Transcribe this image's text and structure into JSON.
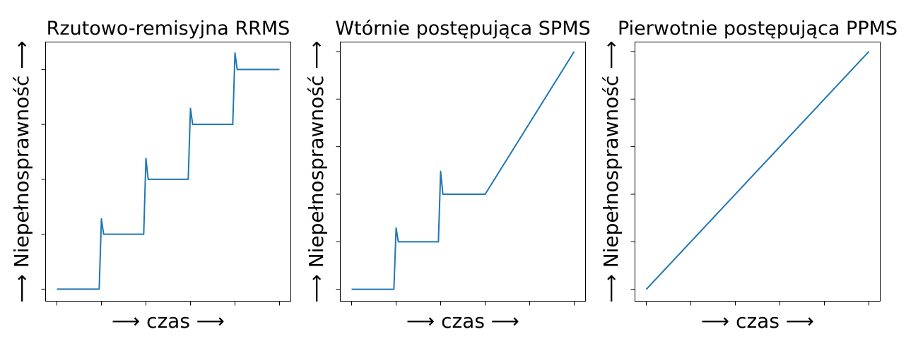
{
  "chart_data": [
    {
      "type": "line",
      "title": "Rzutowo-remisyjna RRMS",
      "xlabel": "⟶ czas ⟶",
      "ylabel": "⟶ Niepełnosprawność ⟶",
      "xlim": [
        0,
        5.25
      ],
      "ylim": [
        -0.22,
        4.5
      ],
      "xticks": [
        0,
        1,
        2,
        3,
        4,
        5
      ],
      "yticks": [
        0,
        1,
        2,
        3,
        4
      ],
      "grid": false,
      "series": [
        {
          "color": "#1f77b4",
          "x": [
            0,
            0.95,
            1.0,
            1.05,
            1.95,
            2.0,
            2.05,
            2.95,
            3.0,
            3.05,
            3.95,
            4.0,
            4.05,
            5.0
          ],
          "y": [
            0,
            0,
            1.28,
            1.0,
            1.0,
            2.38,
            2.0,
            2.0,
            3.29,
            3.0,
            3.0,
            4.3,
            4.0,
            4.0
          ]
        }
      ]
    },
    {
      "type": "line",
      "title": "Wtórnie postępująca SPMS",
      "xlabel": "⟶ czas ⟶",
      "ylabel": "⟶ Niepełnosprawność ⟶",
      "xlim": [
        0,
        5.25
      ],
      "ylim": [
        -0.25,
        5.2
      ],
      "xticks": [
        0,
        1,
        2,
        3,
        4,
        5
      ],
      "yticks": [
        0,
        1,
        2,
        3,
        4,
        5
      ],
      "grid": false,
      "series": [
        {
          "color": "#1f77b4",
          "x": [
            0,
            0.95,
            1.0,
            1.05,
            1.95,
            2.0,
            2.05,
            3.0,
            5.0
          ],
          "y": [
            0,
            0,
            1.29,
            1.0,
            1.0,
            2.48,
            2.0,
            2.0,
            5.0
          ]
        }
      ]
    },
    {
      "type": "line",
      "title": "Pierwotnie postępująca PPMS",
      "xlabel": "⟶ czas ⟶",
      "ylabel": "⟶ Niepełnosprawność ⟶",
      "xlim": [
        0,
        5.25
      ],
      "ylim": [
        -0.25,
        5.2
      ],
      "xticks": [
        0,
        1,
        2,
        3,
        4,
        5
      ],
      "yticks": [
        0,
        1,
        2,
        3,
        4,
        5
      ],
      "grid": false,
      "series": [
        {
          "color": "#1f77b4",
          "x": [
            0,
            5.0
          ],
          "y": [
            0,
            5.0
          ]
        }
      ]
    }
  ]
}
